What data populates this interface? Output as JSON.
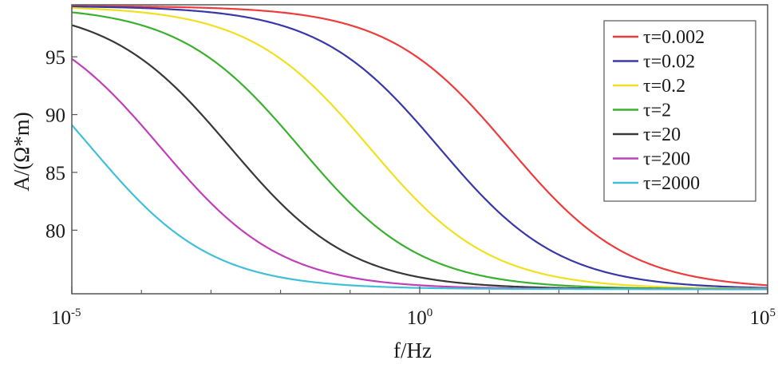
{
  "chart_data": {
    "type": "line",
    "title": "",
    "xlabel": "f/Hz",
    "ylabel": "A/(Ω*m)",
    "x_scale": "log",
    "x_unit": "Hz",
    "xlim": [
      1e-05,
      100000.0
    ],
    "ylim": [
      74.5,
      99.5
    ],
    "x_ticks": [
      {
        "value": 1e-05,
        "base": "10",
        "exp": "-5"
      },
      {
        "value": 1,
        "base": "10",
        "exp": "0"
      },
      {
        "value": 100000.0,
        "base": "10",
        "exp": "5"
      }
    ],
    "y_ticks": [
      {
        "value": 80,
        "label": "80"
      },
      {
        "value": 85,
        "label": "85"
      },
      {
        "value": 90,
        "label": "90"
      },
      {
        "value": 95,
        "label": "95"
      }
    ],
    "grid": false,
    "legend_position": "top-right",
    "model": {
      "A_low": 99.4,
      "A_high": 74.9,
      "shape": "sigmoid in log10(f)",
      "slope": 1.15
    },
    "series": [
      {
        "name": "τ=0.002",
        "tau": 0.002,
        "color": "#ee3b3b",
        "f_mid": 19
      },
      {
        "name": "τ=0.02",
        "tau": 0.02,
        "color": "#3838a8",
        "f_mid": 1.9
      },
      {
        "name": "τ=0.2",
        "tau": 0.2,
        "color": "#f0e020",
        "f_mid": 0.19
      },
      {
        "name": "τ=2",
        "tau": 2,
        "color": "#3ab030",
        "f_mid": 0.019
      },
      {
        "name": "τ=20",
        "tau": 20,
        "color": "#383838",
        "f_mid": 0.0019
      },
      {
        "name": "τ=200",
        "tau": 200,
        "color": "#c040b8",
        "f_mid": 0.00019
      },
      {
        "name": "τ=2000",
        "tau": 2000,
        "color": "#40c0d8",
        "f_mid": 1.9e-05
      }
    ]
  }
}
